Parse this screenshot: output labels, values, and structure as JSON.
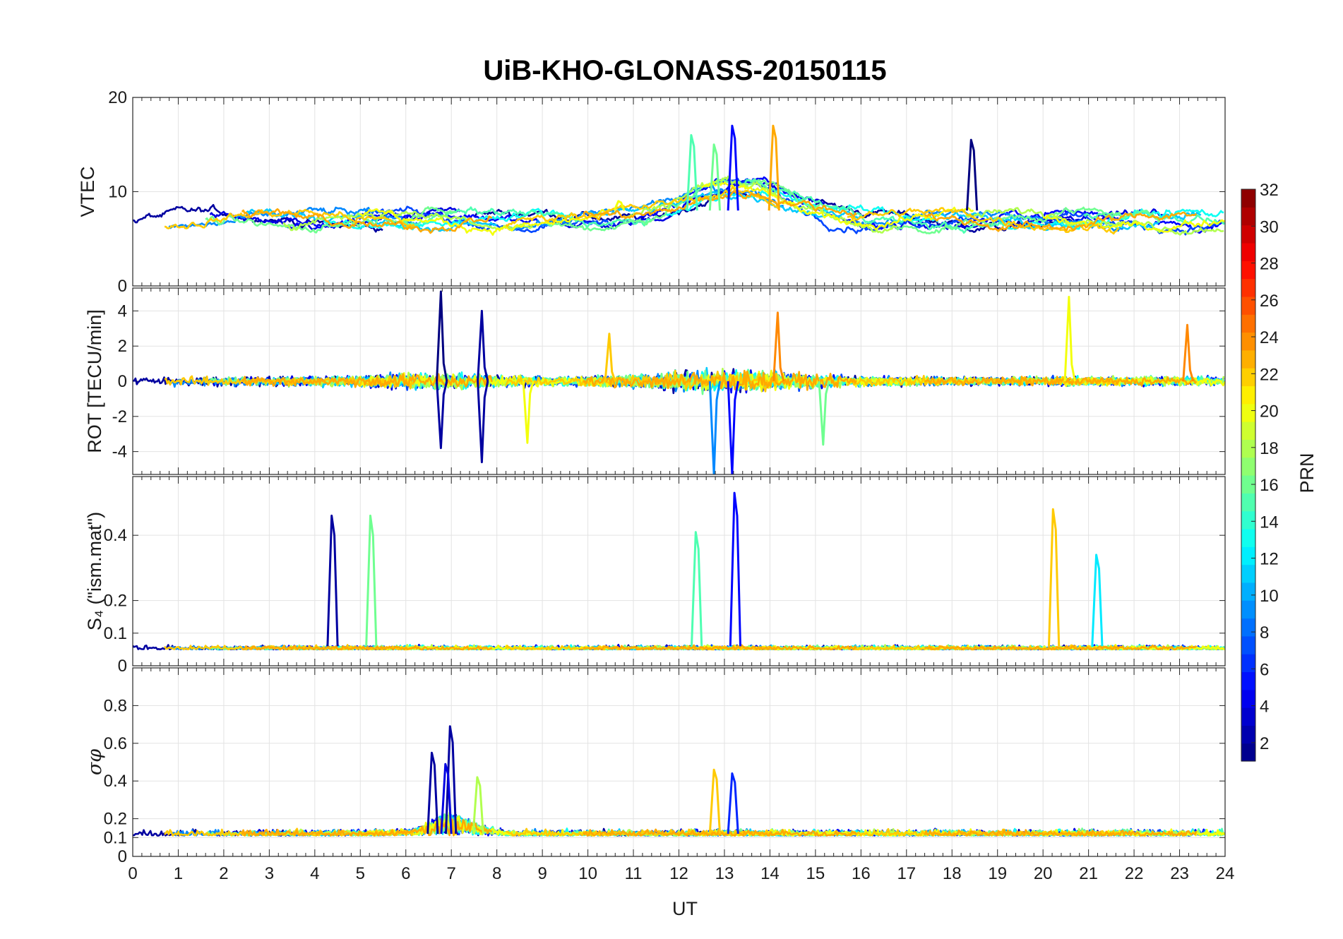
{
  "chart_data": {
    "type": "line",
    "title": "UiB-KHO-GLONASS-20150115",
    "xlabel": "UT",
    "xlim": [
      0,
      24
    ],
    "xticks": [
      "0",
      "1",
      "2",
      "3",
      "4",
      "5",
      "6",
      "7",
      "8",
      "9",
      "10",
      "11",
      "12",
      "13",
      "14",
      "15",
      "16",
      "17",
      "18",
      "19",
      "20",
      "21",
      "22",
      "23",
      "24"
    ],
    "grid": true,
    "colormap": "jet",
    "colorbar": {
      "label": "PRN",
      "range": [
        1,
        32
      ],
      "ticks": [
        "2",
        "4",
        "6",
        "8",
        "10",
        "12",
        "14",
        "16",
        "18",
        "20",
        "22",
        "24",
        "26",
        "28",
        "30",
        "32"
      ]
    },
    "panels": [
      {
        "ylabel": "VTEC",
        "ylim": [
          0,
          20
        ],
        "yticks": [
          "0",
          "10",
          "20"
        ],
        "yticks_values": [
          0,
          10,
          20
        ],
        "approx_level": 7,
        "features": [
          [
            18.45,
            15.5,
            "1"
          ],
          [
            13.2,
            17,
            "5"
          ],
          [
            14.1,
            17,
            "23"
          ],
          [
            12.3,
            16,
            "15"
          ],
          [
            12.8,
            15,
            "16"
          ],
          [
            10.7,
            9,
            "20"
          ]
        ]
      },
      {
        "ylabel": "ROT [TECU/min]",
        "ylim": [
          -5.3,
          5.3
        ],
        "yticks": [
          "-4",
          "-2",
          "0",
          "2",
          "4"
        ],
        "yticks_values": [
          -4,
          -2,
          0,
          2,
          4
        ],
        "spikes": [
          [
            6.8,
            5.1,
            "1"
          ],
          [
            7.7,
            4,
            "2"
          ],
          [
            20.6,
            4.8,
            "20"
          ],
          [
            14.2,
            3.9,
            "24"
          ],
          [
            23.2,
            3.2,
            "24"
          ],
          [
            10.5,
            2.7,
            "22"
          ],
          [
            12.8,
            -5.3,
            "9"
          ],
          [
            13.2,
            -5.3,
            "5"
          ],
          [
            7.7,
            -4.6,
            "2"
          ],
          [
            6.8,
            -3.8,
            "2"
          ],
          [
            8.7,
            -3.5,
            "20"
          ],
          [
            15.2,
            -3.6,
            "16"
          ]
        ]
      },
      {
        "ylabel": "S₄ (\"ism.mat\")",
        "ylim": [
          0,
          0.58
        ],
        "yticks": [
          "0",
          "0.1",
          "0.2",
          "0.4"
        ],
        "yticks_values": [
          0,
          0.1,
          0.2,
          0.4
        ],
        "spikes": [
          [
            4.4,
            0.46,
            "2"
          ],
          [
            5.25,
            0.46,
            "16"
          ],
          [
            12.4,
            0.41,
            "15"
          ],
          [
            13.25,
            0.53,
            "5"
          ],
          [
            20.25,
            0.48,
            "22"
          ],
          [
            21.2,
            0.34,
            "12"
          ]
        ]
      },
      {
        "ylabel": "σφ",
        "ylim": [
          0,
          1
        ],
        "yticks": [
          "0",
          "0.1",
          "0.2",
          "0.4",
          "0.6",
          "0.8"
        ],
        "yticks_values": [
          0,
          0.1,
          0.2,
          0.4,
          0.6,
          0.8
        ],
        "spikes": [
          [
            7.0,
            0.69,
            "2"
          ],
          [
            6.6,
            0.55,
            "2"
          ],
          [
            6.9,
            0.49,
            "4"
          ],
          [
            12.8,
            0.46,
            "22"
          ],
          [
            13.2,
            0.44,
            "6"
          ],
          [
            7.6,
            0.42,
            "18"
          ]
        ]
      }
    ]
  }
}
